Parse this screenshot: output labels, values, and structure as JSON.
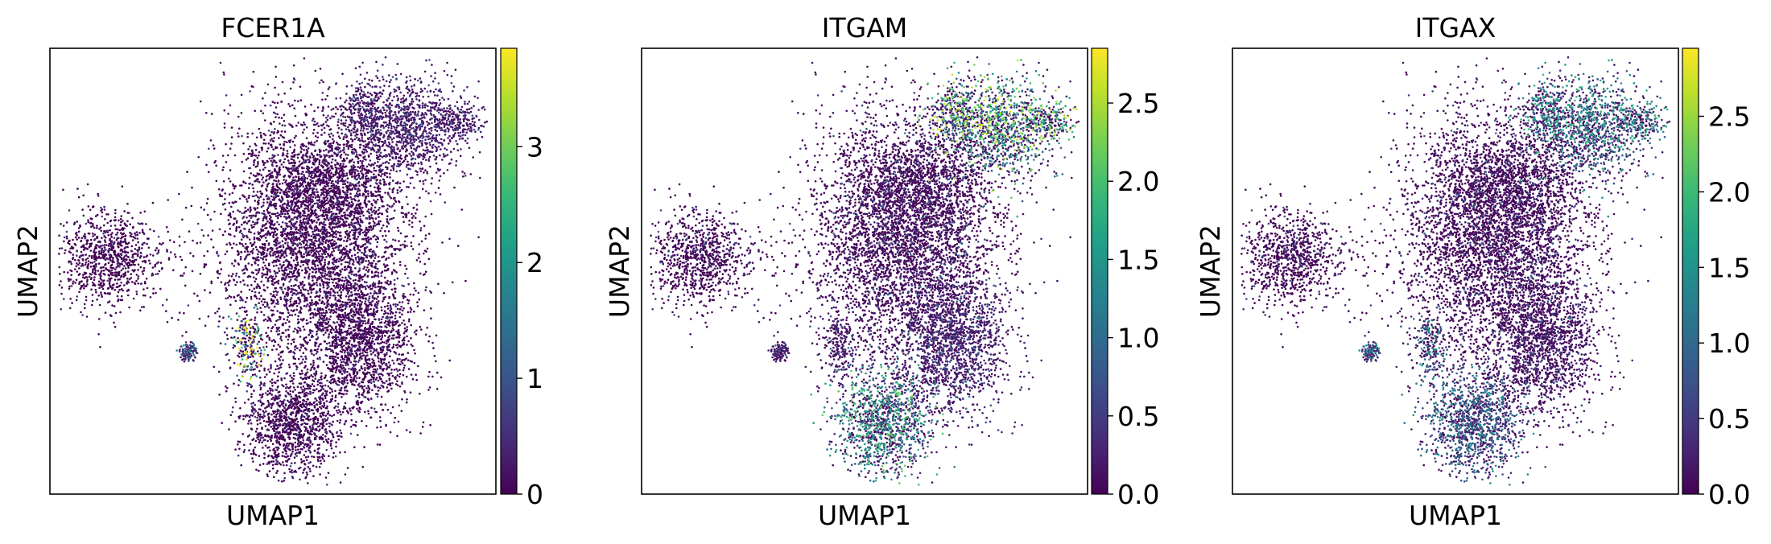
{
  "chart_data": [
    {
      "type": "scatter",
      "title": "FCER1A",
      "xlabel": "UMAP1",
      "ylabel": "UMAP2",
      "colorbar": {
        "colormap": "viridis",
        "range": [
          0,
          3.85
        ],
        "ticks": [
          "0",
          "1",
          "2",
          "3"
        ],
        "tick_values": [
          0,
          1,
          2,
          3
        ]
      },
      "expression": {
        "top-right cluster": 0.4,
        "large central cluster": 0.05,
        "middle-right cluster": 0.05,
        "bottom cluster": 0.05,
        "left cluster": 0.02,
        "small cluster": 1.0,
        "small central cluster": 2.6
      }
    },
    {
      "type": "scatter",
      "title": "ITGAM",
      "xlabel": "UMAP1",
      "ylabel": "UMAP2",
      "colorbar": {
        "colormap": "viridis",
        "range": [
          0,
          2.85
        ],
        "ticks": [
          "0.0",
          "0.5",
          "1.0",
          "1.5",
          "2.0",
          "2.5"
        ],
        "tick_values": [
          0,
          0.5,
          1.0,
          1.5,
          2.0,
          2.5
        ]
      },
      "expression": {
        "top-right cluster": 1.6,
        "large central cluster": 0.1,
        "middle-right cluster": 0.35,
        "bottom cluster": 1.3,
        "left cluster": 0.05,
        "small cluster": 0.3,
        "small central cluster": 0.3
      }
    },
    {
      "type": "scatter",
      "title": "ITGAX",
      "xlabel": "UMAP1",
      "ylabel": "UMAP2",
      "colorbar": {
        "colormap": "viridis",
        "range": [
          0,
          2.95
        ],
        "ticks": [
          "0.0",
          "0.5",
          "1.0",
          "1.5",
          "2.0",
          "2.5"
        ],
        "tick_values": [
          0,
          0.5,
          1.0,
          1.5,
          2.0,
          2.5
        ]
      },
      "expression": {
        "top-right cluster": 1.2,
        "large central cluster": 0.1,
        "middle-right cluster": 0.2,
        "bottom cluster": 0.9,
        "left cluster": 0.05,
        "small cluster": 0.9,
        "small central cluster": 1.0
      }
    }
  ]
}
